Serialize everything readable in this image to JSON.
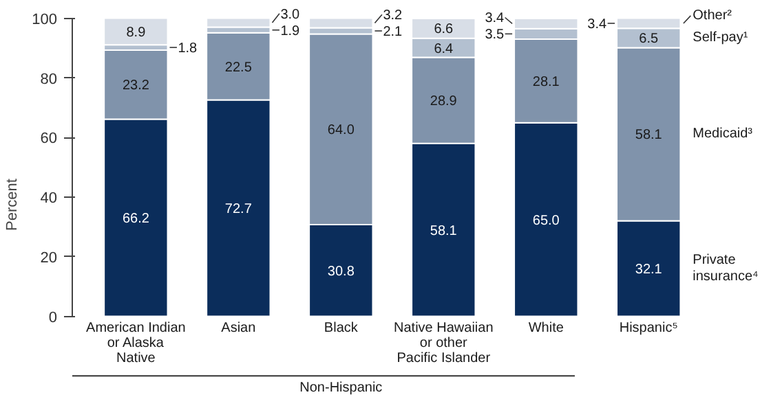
{
  "chart_data": {
    "type": "bar",
    "stacked": true,
    "ylabel": "Percent",
    "categories": [
      "American Indian\nor Alaska\nNative",
      "Asian",
      "Black",
      "Native Hawaiian\nor other\nPacific Islander",
      "White",
      "Hispanic⁵"
    ],
    "series": [
      {
        "name": "Private\ninsurance⁴",
        "color": "#0b2d5b",
        "values": [
          66.2,
          72.7,
          30.8,
          58.1,
          65.0,
          32.1
        ],
        "value_labels": [
          "66.2",
          "72.7",
          "30.8",
          "58.1",
          "65.0",
          "32.1"
        ]
      },
      {
        "name": "Medicaid³",
        "color": "#8093ab",
        "values": [
          23.2,
          22.5,
          64.0,
          28.9,
          28.1,
          58.1
        ],
        "value_labels": [
          "23.2",
          "22.5",
          "64.0",
          "28.9",
          "28.1",
          "58.1"
        ]
      },
      {
        "name": "Self-pay¹",
        "color": "#b3c0d0",
        "values": [
          1.8,
          1.9,
          2.1,
          6.4,
          3.5,
          6.5
        ],
        "value_labels": [
          "1.8",
          "1.9",
          "2.1",
          "6.4",
          "3.5",
          "6.5"
        ]
      },
      {
        "name": "Other²",
        "color": "#d8dee7",
        "values": [
          8.9,
          3.0,
          3.2,
          6.6,
          3.4,
          3.4
        ],
        "value_labels": [
          "8.9",
          "3.0",
          "3.2",
          "6.6",
          "3.4",
          "3.4"
        ]
      }
    ],
    "ylim": [
      0,
      100
    ],
    "yticks": [
      0,
      20,
      40,
      60,
      80,
      100
    ],
    "grid": false,
    "legend": "right",
    "annotations": [
      "Non-Hispanic"
    ]
  }
}
